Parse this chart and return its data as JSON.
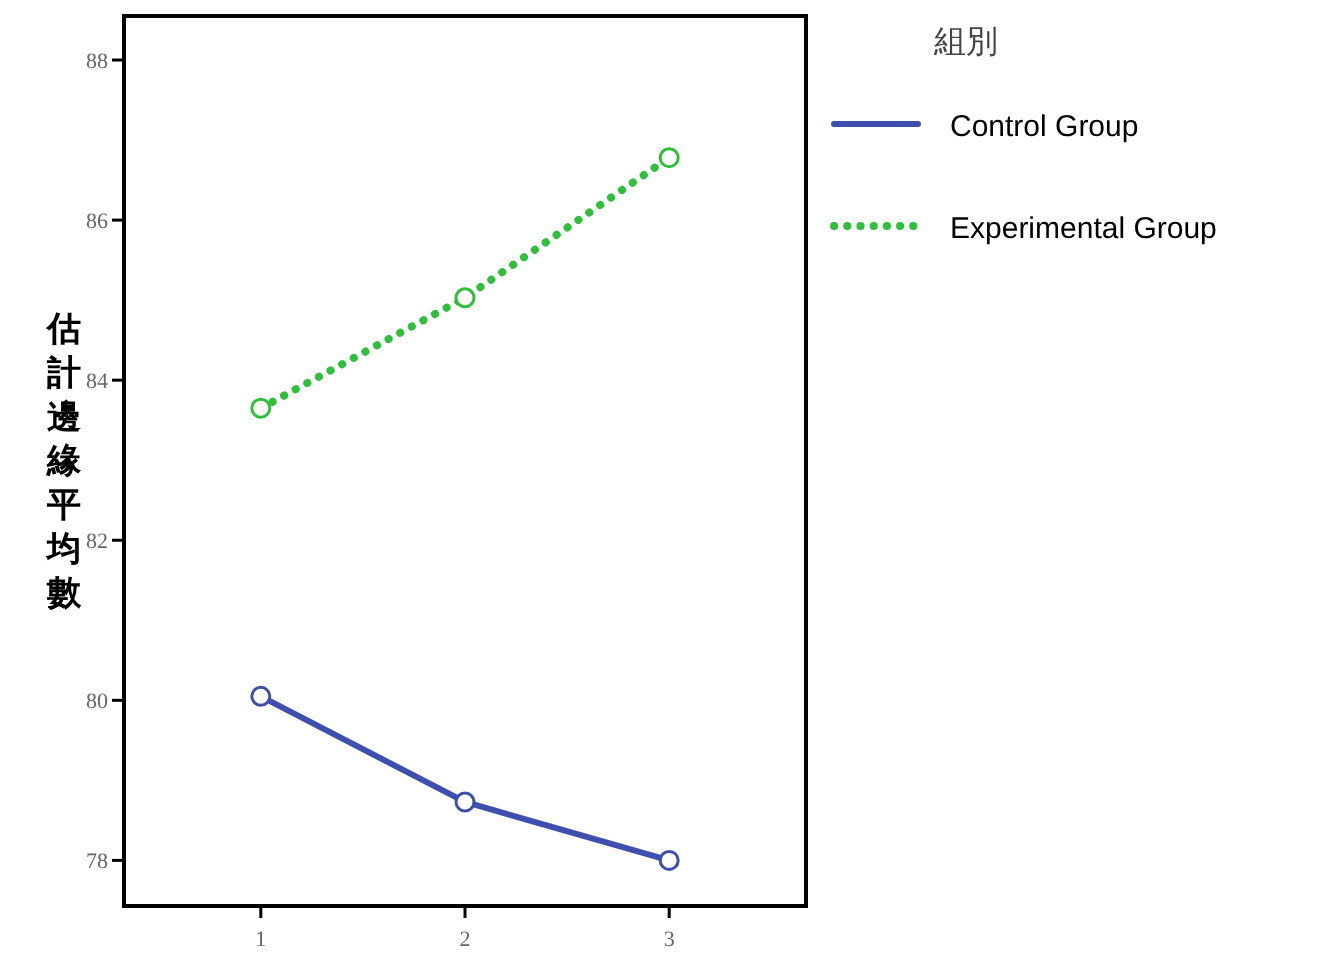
{
  "chart_data": {
    "type": "line",
    "ylabel": "估計邊緣平均數",
    "legend_title": "組別",
    "x": [
      1,
      2,
      3
    ],
    "xlim": [
      0.33,
      3.67
    ],
    "xticks": [
      1,
      2,
      3
    ],
    "ylim": [
      77.43,
      88.55
    ],
    "yticks": [
      78,
      80,
      82,
      84,
      86,
      88
    ],
    "marker": "circle",
    "legend": "right",
    "grid": false,
    "series": [
      {
        "name": "Control Group",
        "color": "#3f4fae",
        "values": [
          80.05,
          78.73,
          78.0
        ],
        "line_style": "solid"
      },
      {
        "name": "Experimental Group",
        "color": "#2fbf3a",
        "values": [
          83.65,
          85.03,
          86.78
        ],
        "line_style": "dotted"
      }
    ]
  }
}
